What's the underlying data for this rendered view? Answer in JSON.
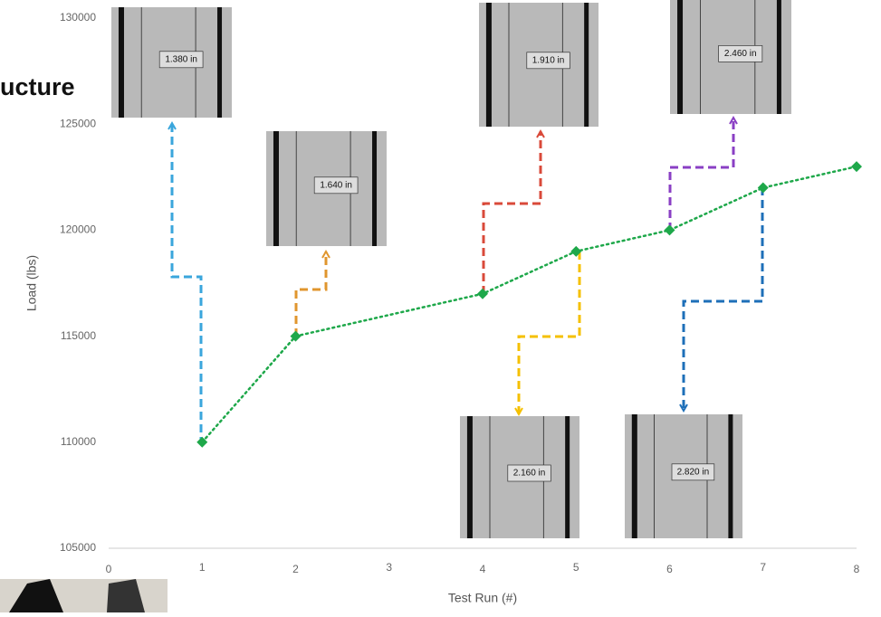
{
  "chart_data": {
    "type": "line",
    "title": "ucture",
    "x_label": "Test Run (#)",
    "y_label": "Load (lbs)",
    "x": [
      1,
      2,
      4,
      5,
      6,
      7,
      8
    ],
    "series": [
      {
        "color": "#1ea84a",
        "values": [
          110000,
          115000,
          117000,
          119000,
          120000,
          122000,
          123000
        ]
      }
    ],
    "xlim": [
      0,
      8
    ],
    "xticks": [
      0,
      1,
      2,
      3,
      4,
      5,
      6,
      7,
      8
    ],
    "ylim": [
      105000,
      130000
    ],
    "yticks": [
      105000,
      110000,
      115000,
      120000,
      125000,
      130000
    ],
    "annotations": [
      "1.380 in",
      "1.640 in",
      "1.910 in",
      "2.460 in",
      "2.160 in",
      "2.820 in"
    ]
  }
}
